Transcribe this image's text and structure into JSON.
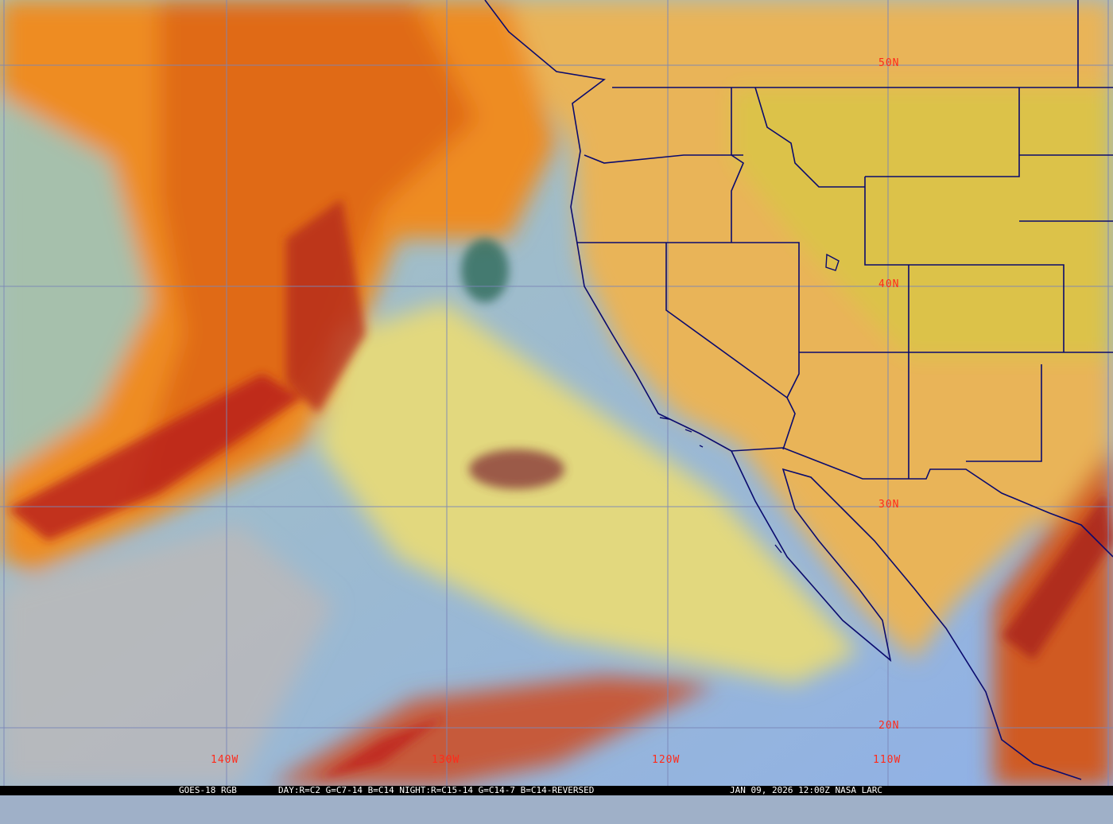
{
  "caption": {
    "satellite": "GOES-18 RGB",
    "recipe": "DAY:R=C2 G=C7-14 B=C14 NIGHT:R=C15-14 G=C14-7 B=C14-REVERSED",
    "timestamp": "JAN 09, 2026 12:00Z NASA LARC"
  },
  "grid": {
    "latitudes": [
      "50N",
      "40N",
      "30N",
      "20N"
    ],
    "longitudes": [
      "140W",
      "130W",
      "120W",
      "110W"
    ]
  },
  "colors": {
    "grid_line": "#7a86b8",
    "grid_label": "#ff2a1a",
    "boundaries": "#0a0a6e",
    "clear_ocean": "#9db4d8",
    "low_cloud": "#e6df7a",
    "high_cloud": "#f08a1e",
    "thick_cloud": "#c0231e"
  }
}
